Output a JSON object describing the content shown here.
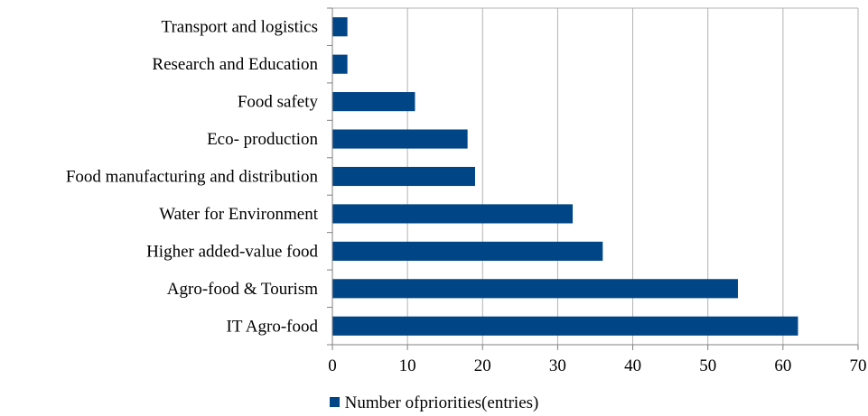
{
  "chart_data": {
    "type": "bar",
    "orientation": "horizontal",
    "categories": [
      "Transport and logistics",
      "Research and Education",
      "Food safety",
      "Eco- production",
      "Food manufacturing and distribution",
      "Water for Environment",
      "Higher added-value food",
      "Agro-food & Tourism",
      "IT Agro-food"
    ],
    "series": [
      {
        "name": "Number ofpriorities(entries)",
        "values": [
          2,
          2,
          11,
          18,
          19,
          32,
          36,
          54,
          62
        ]
      }
    ],
    "xlim": [
      0,
      70
    ],
    "xticks": [
      "0",
      "10",
      "20",
      "30",
      "40",
      "50",
      "60",
      "70"
    ],
    "grid": true,
    "legend_position": "bottom",
    "colors": {
      "bar": "#004586",
      "grid": "#b3b3b3",
      "axis": "#808080"
    }
  }
}
